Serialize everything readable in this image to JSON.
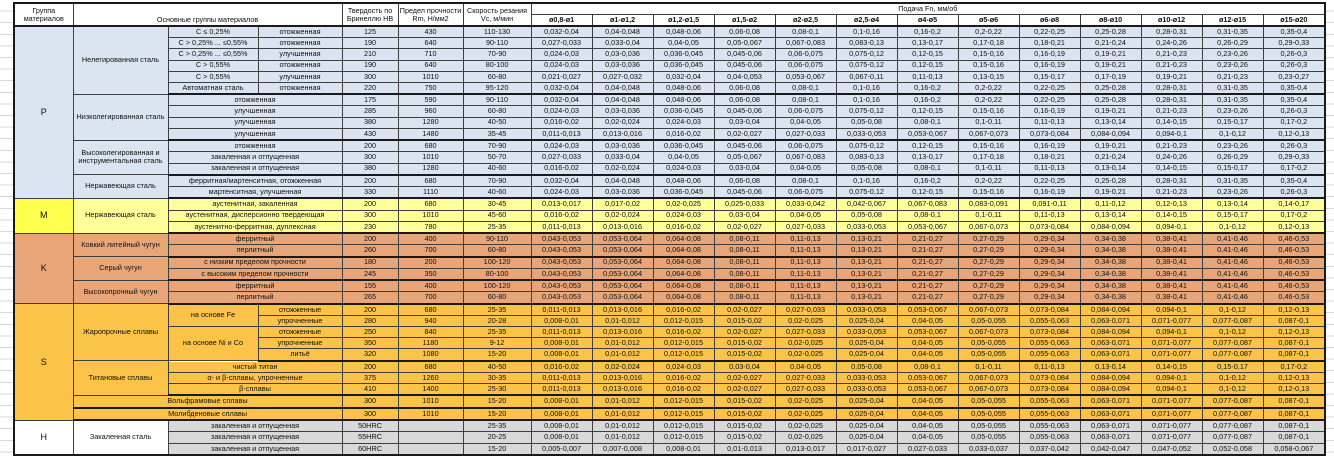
{
  "header": {
    "group_col": "Группа материалов",
    "main_groups_col": "Основные группы материалов",
    "hardness_col": "Твердость по Бринеллю НВ",
    "strength_col": "Предел прочности Rm, Н/мм2",
    "speed_col": "Скорость резания Vc, м/мин",
    "feed_span": "Подача Fn, мм/об",
    "diameters": [
      "ø0,8-ø1",
      "ø1-ø1,2",
      "ø1,2-ø1,5",
      "ø1,5-ø2",
      "ø2-ø2,5",
      "ø2,5-ø4",
      "ø4-ø5",
      "ø5-ø6",
      "ø6-ø8",
      "ø8-ø10",
      "ø10-ø12",
      "ø12-ø15",
      "ø15-ø20"
    ]
  },
  "colors": {
    "section_P": "#dbe5f1",
    "section_M": "#ffff99",
    "section_K": "#e8a678",
    "section_S": "#fcc349",
    "section_H": "#d9d9d9",
    "grid": "#3f3f3f"
  },
  "feed_templates": {
    "A": [
      "0,032-0,04",
      "0,04-0,048",
      "0,048-0,06",
      "0,06-0,08",
      "0,08-0,1",
      "0,1-0,16",
      "0,16-0,2",
      "0,2-0,22",
      "0,22-0,25",
      "0,25-0,28",
      "0,28-0,31",
      "0,31-0,35",
      "0,35-0,4"
    ],
    "B": [
      "0,027-0,033",
      "0,033-0,04",
      "0,04-0,05",
      "0,05-0,067",
      "0,067-0,083",
      "0,083-0,13",
      "0,13-0,17",
      "0,17-0,18",
      "0,18-0,21",
      "0,21-0,24",
      "0,24-0,26",
      "0,26-0,29",
      "0,29-0,33"
    ],
    "C": [
      "0,024-0,03",
      "0,03-0,036",
      "0,036-0,045",
      "0,045-0,06",
      "0,06-0,075",
      "0,075-0,12",
      "0,12-0,15",
      "0,15-0,16",
      "0,16-0,19",
      "0,19-0,21",
      "0,21-0,23",
      "0,23-0,26",
      "0,26-0,3"
    ],
    "D": [
      "0,021-0,027",
      "0,027-0,032",
      "0,032-0,04",
      "0,04-0,053",
      "0,053-0,067",
      "0,067-0,11",
      "0,11-0,13",
      "0,13-0,15",
      "0,15-0,17",
      "0,17-0,19",
      "0,19-0,21",
      "0,21-0,23",
      "0,23-0,27"
    ],
    "E": [
      "0,016-0,02",
      "0,02-0,024",
      "0,024-0,03",
      "0,03-0,04",
      "0,04-0,05",
      "0,05-0,08",
      "0,08-0,1",
      "0,1-0,11",
      "0,11-0,13",
      "0,13-0,14",
      "0,14-0,15",
      "0,15-0,17",
      "0,17-0,2"
    ],
    "F": [
      "0,011-0,013",
      "0,013-0,016",
      "0,016-0,02",
      "0,02-0,027",
      "0,027-0,033",
      "0,033-0,053",
      "0,053-0,067",
      "0,067-0,073",
      "0,073-0,084",
      "0,084-0,094",
      "0,094-0,1",
      "0,1-0,12",
      "0,12-0,13"
    ],
    "G": [
      "0,008-0,01",
      "0,01-0,012",
      "0,012-0,015",
      "0,015-0,02",
      "0,02-0,025",
      "0,025-0,04",
      "0,04-0,05",
      "0,05-0,055",
      "0,055-0,063",
      "0,063-0,071",
      "0,071-0,077",
      "0,077-0,087",
      "0,087-0,1"
    ],
    "M1": [
      "0,013-0,017",
      "0,017-0,02",
      "0,02-0,025",
      "0,025-0,033",
      "0,033-0,042",
      "0,042-0,067",
      "0,067-0,083",
      "0,083-0,091",
      "0,091-0,11",
      "0,11-0,12",
      "0,12-0,13",
      "0,13-0,14",
      "0,14-0,17"
    ],
    "K1": [
      "0,043-0,053",
      "0,053-0,064",
      "0,064-0,08",
      "0,08-0,11",
      "0,11-0,13",
      "0,13-0,21",
      "0,21-0,27",
      "0,27-0,29",
      "0,29-0,34",
      "0,34-0,38",
      "0,38-0,41",
      "0,41-0,46",
      "0,46-0,53"
    ],
    "H3": [
      "0,005-0,007",
      "0,007-0,008",
      "0,008-0,01",
      "0,01-0,013",
      "0,013-0,017",
      "0,017-0,027",
      "0,027-0,033",
      "0,033-0,037",
      "0,037-0,042",
      "0,042-0,047",
      "0,047-0,052",
      "0,052-0,058",
      "0,058-0,067"
    ]
  },
  "rows": [
    {
      "sec": "P",
      "labels": [
        {
          "text": "P",
          "rowspan": 15,
          "group": true
        },
        {
          "text": "Нелегированная сталь",
          "rowspan": 6
        },
        {
          "text": "C ≤ 0,25%"
        },
        {
          "text": "отожженная"
        }
      ],
      "hb": "125",
      "rm": "430",
      "vc": "110-130",
      "feed": "A"
    },
    {
      "sec": "P",
      "labels": [
        {
          "text": "C > 0,25% ... ≤0,55%"
        },
        {
          "text": "отожженная"
        }
      ],
      "hb": "190",
      "rm": "640",
      "vc": "90-110",
      "feed": "B"
    },
    {
      "sec": "P",
      "labels": [
        {
          "text": "C > 0,25% ... ≤0,55%"
        },
        {
          "text": "улучшенная"
        }
      ],
      "hb": "210",
      "rm": "710",
      "vc": "70-90",
      "feed": "C"
    },
    {
      "sec": "P",
      "labels": [
        {
          "text": "C > 0,55%"
        },
        {
          "text": "отожженная"
        }
      ],
      "hb": "190",
      "rm": "640",
      "vc": "80-100",
      "feed": "C"
    },
    {
      "sec": "P",
      "labels": [
        {
          "text": "C > 0,55%"
        },
        {
          "text": "улучшенная"
        }
      ],
      "hb": "300",
      "rm": "1010",
      "vc": "60-80",
      "feed": "D"
    },
    {
      "sec": "P",
      "end": true,
      "labels": [
        {
          "text": "Автоматная сталь"
        },
        {
          "text": "отожженная"
        }
      ],
      "hb": "220",
      "rm": "750",
      "vc": "95-120",
      "feed": "A"
    },
    {
      "sec": "P",
      "labels": [
        {
          "text": "Низколегированная сталь",
          "rowspan": 4
        },
        {
          "text": "отожженная",
          "colspan": 2
        }
      ],
      "hb": "175",
      "rm": "590",
      "vc": "90-110",
      "feed": "A"
    },
    {
      "sec": "P",
      "labels": [
        {
          "text": "улучшенная",
          "colspan": 2
        }
      ],
      "hb": "285",
      "rm": "960",
      "vc": "60-80",
      "feed": "C"
    },
    {
      "sec": "P",
      "labels": [
        {
          "text": "улучшенная",
          "colspan": 2
        }
      ],
      "hb": "380",
      "rm": "1280",
      "vc": "40-50",
      "feed": "E"
    },
    {
      "sec": "P",
      "end": true,
      "labels": [
        {
          "text": "улучшенная",
          "colspan": 2
        }
      ],
      "hb": "430",
      "rm": "1480",
      "vc": "35-45",
      "feed": "F"
    },
    {
      "sec": "P",
      "labels": [
        {
          "text": "Высоколегированная и инструментальная сталь",
          "rowspan": 3
        },
        {
          "text": "отожженная",
          "colspan": 2
        }
      ],
      "hb": "200",
      "rm": "680",
      "vc": "70-90",
      "feed": "C"
    },
    {
      "sec": "P",
      "labels": [
        {
          "text": "закаленная и отпущенная",
          "colspan": 2
        }
      ],
      "hb": "300",
      "rm": "1010",
      "vc": "50-70",
      "feed": "B"
    },
    {
      "sec": "P",
      "end": true,
      "labels": [
        {
          "text": "закаленная и отпущенная",
          "colspan": 2
        }
      ],
      "hb": "380",
      "rm": "1280",
      "vc": "40-60",
      "feed": "E"
    },
    {
      "sec": "P",
      "labels": [
        {
          "text": "Нержавеющая сталь",
          "rowspan": 2
        },
        {
          "text": "ферритная/мартенситная, отожженная",
          "colspan": 2
        }
      ],
      "hb": "200",
      "rm": "680",
      "vc": "70-90",
      "feed": "A"
    },
    {
      "sec": "P",
      "end": true,
      "labels": [
        {
          "text": "мартенситная, улучшенная",
          "colspan": 2
        }
      ],
      "hb": "330",
      "rm": "1110",
      "vc": "40-60",
      "feed": "C"
    },
    {
      "sec": "M",
      "labels": [
        {
          "text": "M",
          "rowspan": 3,
          "group": true
        },
        {
          "text": "Нержавеющая сталь",
          "rowspan": 3
        },
        {
          "text": "аустенитная, закаленная",
          "colspan": 2
        }
      ],
      "hb": "200",
      "rm": "680",
      "vc": "30-45",
      "feed": "M1"
    },
    {
      "sec": "M",
      "labels": [
        {
          "text": "аустенитная, дисперсионно твердеющая",
          "colspan": 2
        }
      ],
      "hb": "300",
      "rm": "1010",
      "vc": "45-60",
      "feed": "E"
    },
    {
      "sec": "M",
      "end": true,
      "labels": [
        {
          "text": "аустенитно-ферритная, дуплексная",
          "colspan": 2
        }
      ],
      "hb": "230",
      "rm": "780",
      "vc": "25-35",
      "feed": "F"
    },
    {
      "sec": "K",
      "labels": [
        {
          "text": "K",
          "rowspan": 6,
          "group": true
        },
        {
          "text": "Ковкий литейный чугун",
          "rowspan": 2
        },
        {
          "text": "ферритный",
          "colspan": 2
        }
      ],
      "hb": "200",
      "rm": "400",
      "vc": "90-110",
      "feed": "K1"
    },
    {
      "sec": "K",
      "end": true,
      "labels": [
        {
          "text": "перлитный",
          "colspan": 2
        }
      ],
      "hb": "260",
      "rm": "700",
      "vc": "60-80",
      "feed": "K1"
    },
    {
      "sec": "K",
      "labels": [
        {
          "text": "Серый чугун",
          "rowspan": 2
        },
        {
          "text": "с низким пределом прочности",
          "colspan": 2
        }
      ],
      "hb": "180",
      "rm": "200",
      "vc": "100-120",
      "feed": "K1"
    },
    {
      "sec": "K",
      "end": true,
      "labels": [
        {
          "text": "с высоким пределом прочности",
          "colspan": 2
        }
      ],
      "hb": "245",
      "rm": "350",
      "vc": "80-100",
      "feed": "K1"
    },
    {
      "sec": "K",
      "labels": [
        {
          "text": "Высокопрочный чугун",
          "rowspan": 2
        },
        {
          "text": "ферритный",
          "colspan": 2
        }
      ],
      "hb": "155",
      "rm": "400",
      "vc": "100-120",
      "feed": "K1"
    },
    {
      "sec": "K",
      "end": true,
      "labels": [
        {
          "text": "перлитный",
          "colspan": 2
        }
      ],
      "hb": "265",
      "rm": "700",
      "vc": "60-80",
      "feed": "K1"
    },
    {
      "sec": "S",
      "labels": [
        {
          "text": "S",
          "rowspan": 10,
          "group": true
        },
        {
          "text": "Жаропрочные сплавы",
          "rowspan": 5
        },
        {
          "text": "на основе Fe",
          "rowspan": 2
        },
        {
          "text": "отожженные"
        }
      ],
      "hb": "200",
      "rm": "680",
      "vc": "25-35",
      "feed": "F"
    },
    {
      "sec": "S",
      "labels": [
        {
          "text": "упрочненные"
        }
      ],
      "hb": "280",
      "rm": "940",
      "vc": "20-28",
      "feed": "G"
    },
    {
      "sec": "S",
      "labels": [
        {
          "text": "на основе Ni и Co",
          "rowspan": 3
        },
        {
          "text": "отожженные"
        }
      ],
      "hb": "250",
      "rm": "840",
      "vc": "25-35",
      "feed": "F"
    },
    {
      "sec": "S",
      "labels": [
        {
          "text": "упрочненные"
        }
      ],
      "hb": "350",
      "rm": "1180",
      "vc": "9-12",
      "feed": "G"
    },
    {
      "sec": "S",
      "end": true,
      "labels": [
        {
          "text": "литьё"
        }
      ],
      "hb": "320",
      "rm": "1080",
      "vc": "15-20",
      "feed": "G"
    },
    {
      "sec": "S",
      "labels": [
        {
          "text": "Титановые сплавы",
          "rowspan": 3
        },
        {
          "text": "чистый титан",
          "colspan": 2
        }
      ],
      "hb": "200",
      "rm": "680",
      "vc": "40-50",
      "feed": "E"
    },
    {
      "sec": "S",
      "labels": [
        {
          "text": "α- и β-сплавы, упрочненные",
          "colspan": 2
        }
      ],
      "hb": "375",
      "rm": "1260",
      "vc": "30-35",
      "feed": "F"
    },
    {
      "sec": "S",
      "end": true,
      "labels": [
        {
          "text": "β-сплавы",
          "colspan": 2
        }
      ],
      "hb": "410",
      "rm": "1400",
      "vc": "25-30",
      "feed": "F"
    },
    {
      "sec": "S",
      "end": true,
      "labels": [
        {
          "text": "Вольфрамовые сплавы",
          "colspan": 3
        }
      ],
      "hb": "300",
      "rm": "1010",
      "vc": "15-20",
      "feed": "G"
    },
    {
      "sec": "S",
      "end": true,
      "labels": [
        {
          "text": "Молибденовые сплавы",
          "colspan": 3
        }
      ],
      "hb": "300",
      "rm": "1010",
      "vc": "15-20",
      "feed": "G"
    },
    {
      "sec": "H",
      "labels": [
        {
          "text": "H",
          "rowspan": 3,
          "group": true
        },
        {
          "text": "Закаленная сталь",
          "rowspan": 3,
          "white": true
        },
        {
          "text": "закаленная и отпущенная",
          "colspan": 2
        }
      ],
      "hb": "50HRC",
      "rm": "",
      "vc": "25-35",
      "feed": "G"
    },
    {
      "sec": "H",
      "labels": [
        {
          "text": "закаленная и отпущенная",
          "colspan": 2
        }
      ],
      "hb": "55HRC",
      "rm": "",
      "vc": "20-25",
      "feed": "G"
    },
    {
      "sec": "H",
      "labels": [
        {
          "text": "закаленная и отпущенная",
          "colspan": 2
        }
      ],
      "hb": "60HRC",
      "rm": "",
      "vc": "15-20",
      "feed": "H3"
    }
  ]
}
